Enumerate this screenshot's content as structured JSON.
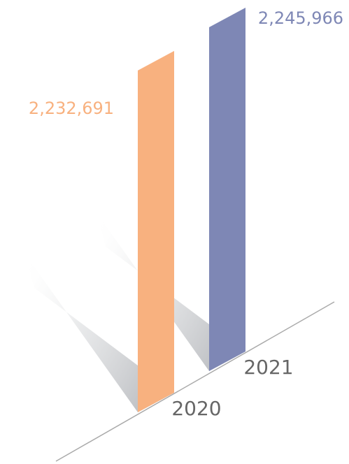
{
  "chart_data": {
    "type": "bar",
    "categories": [
      "2020",
      "2021"
    ],
    "values": [
      2232691,
      2245966
    ],
    "value_labels": [
      "2,232,691",
      "2,245,966"
    ],
    "colors": [
      "#f8b17f",
      "#7e87b5"
    ]
  }
}
